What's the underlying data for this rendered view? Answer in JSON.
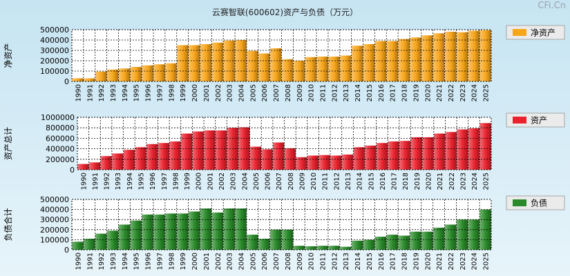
{
  "title": "云赛智联(600602)资产与负债（万元）",
  "watermark": "CFi.Cn",
  "chart_data": [
    {
      "type": "bar",
      "ylabel": "净资产",
      "legend": "净资产",
      "color": "#f7a51b",
      "ylim": [
        0,
        500000
      ],
      "yticks": [
        0,
        100000,
        200000,
        300000,
        400000,
        500000
      ],
      "categories": [
        "1990",
        "1991",
        "1992",
        "1993",
        "1994",
        "1995",
        "1996",
        "1997",
        "1998",
        "1999",
        "2000",
        "2001",
        "2002",
        "2003",
        "2004",
        "2005",
        "2006",
        "2007",
        "2008",
        "2009",
        "2010",
        "2011",
        "2012",
        "2013",
        "2014",
        "2015",
        "2016",
        "2017",
        "2018",
        "2019",
        "2020",
        "2021",
        "2022",
        "2023",
        "2024",
        "2025"
      ],
      "values": [
        30000,
        30000,
        95000,
        115000,
        125000,
        140000,
        155000,
        165000,
        175000,
        350000,
        350000,
        360000,
        375000,
        395000,
        400000,
        295000,
        270000,
        320000,
        215000,
        200000,
        235000,
        240000,
        240000,
        250000,
        345000,
        360000,
        390000,
        390000,
        410000,
        425000,
        445000,
        465000,
        480000,
        475000,
        490000,
        495000
      ]
    },
    {
      "type": "bar",
      "ylabel": "资产总计",
      "legend": "资产",
      "color": "#e8222e",
      "ylim": [
        0,
        1000000
      ],
      "yticks": [
        0,
        200000,
        400000,
        600000,
        800000,
        1000000
      ],
      "categories": [
        "1990",
        "1991",
        "1992",
        "1993",
        "1994",
        "1995",
        "1996",
        "1997",
        "1998",
        "1999",
        "2000",
        "2001",
        "2002",
        "2003",
        "2004",
        "2005",
        "2006",
        "2007",
        "2008",
        "2009",
        "2010",
        "2011",
        "2012",
        "2013",
        "2014",
        "2015",
        "2016",
        "2017",
        "2018",
        "2019",
        "2020",
        "2021",
        "2022",
        "2023",
        "2024",
        "2025"
      ],
      "values": [
        110000,
        140000,
        260000,
        310000,
        380000,
        430000,
        490000,
        510000,
        540000,
        690000,
        730000,
        750000,
        750000,
        800000,
        810000,
        440000,
        390000,
        520000,
        410000,
        240000,
        270000,
        280000,
        270000,
        290000,
        430000,
        460000,
        510000,
        540000,
        550000,
        620000,
        620000,
        690000,
        720000,
        770000,
        790000,
        890000
      ]
    },
    {
      "type": "bar",
      "ylabel": "负债合计",
      "legend": "负债",
      "color": "#2a8a2a",
      "ylim": [
        0,
        500000
      ],
      "yticks": [
        0,
        100000,
        200000,
        300000,
        400000,
        500000
      ],
      "categories": [
        "1990",
        "1991",
        "1992",
        "1993",
        "1994",
        "1995",
        "1996",
        "1997",
        "1998",
        "1999",
        "2000",
        "2001",
        "2002",
        "2003",
        "2004",
        "2005",
        "2006",
        "2007",
        "2008",
        "2009",
        "2010",
        "2011",
        "2012",
        "2013",
        "2014",
        "2015",
        "2016",
        "2017",
        "2018",
        "2019",
        "2020",
        "2021",
        "2022",
        "2023",
        "2024",
        "2025"
      ],
      "values": [
        80000,
        110000,
        160000,
        190000,
        250000,
        290000,
        350000,
        350000,
        360000,
        360000,
        380000,
        410000,
        370000,
        410000,
        410000,
        150000,
        110000,
        200000,
        200000,
        40000,
        35000,
        40000,
        40000,
        30000,
        90000,
        100000,
        130000,
        150000,
        140000,
        180000,
        180000,
        220000,
        250000,
        300000,
        300000,
        400000
      ]
    }
  ]
}
